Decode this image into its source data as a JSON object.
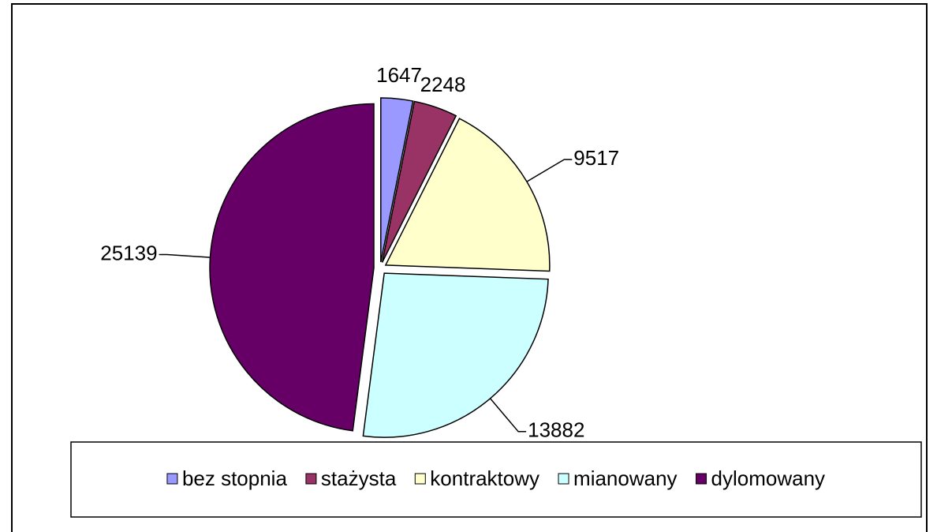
{
  "chart_data": {
    "type": "pie",
    "categories": [
      "bez stopnia",
      "stażysta",
      "kontraktowy",
      "mianowany",
      "dylomowany"
    ],
    "values": [
      1647,
      2248,
      9517,
      13882,
      25139
    ],
    "colors": [
      "#9999ff",
      "#993366",
      "#ffffcc",
      "#ccffff",
      "#660066"
    ],
    "legend": "bottom"
  }
}
